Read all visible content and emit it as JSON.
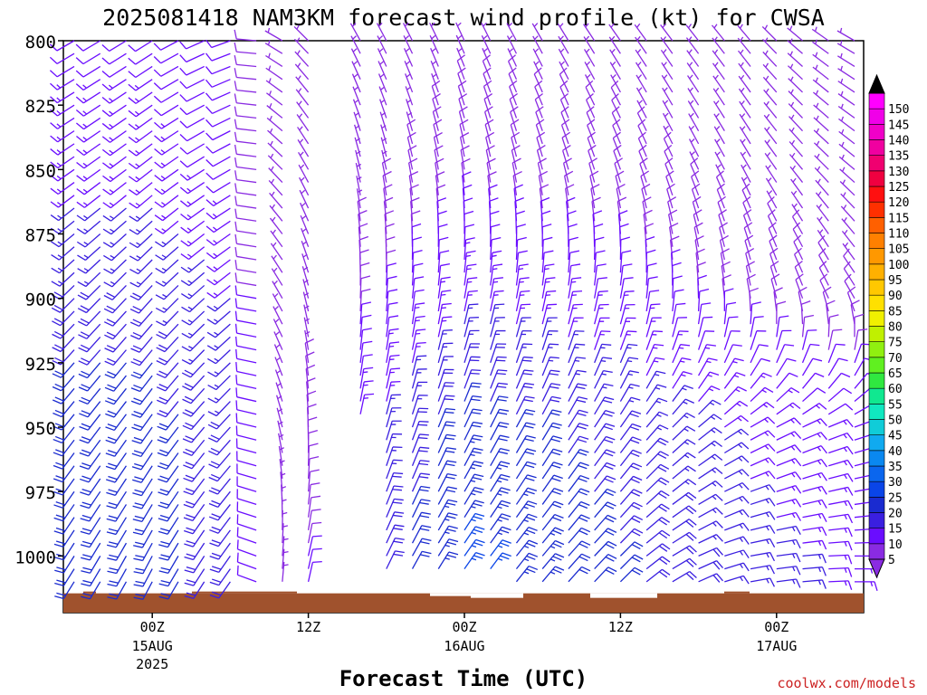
{
  "chart_data": {
    "type": "wind-barb-time-height",
    "title": "2025081418 NAM3KM forecast wind profile (kt) for CWSA",
    "xlabel": "Forecast Time (UTC)",
    "credit": "coolwx.com/models",
    "y_axis": {
      "ticks": [
        "800",
        "825",
        "850",
        "875",
        "900",
        "925",
        "950",
        "975",
        "1000"
      ],
      "range_hpa": [
        800,
        1022
      ],
      "direction": "inverted"
    },
    "x_axis": {
      "ticks": [
        {
          "label": "00Z",
          "sub1": "15AUG",
          "sub2": "2025"
        },
        {
          "label": "12Z",
          "sub1": "",
          "sub2": ""
        },
        {
          "label": "00Z",
          "sub1": "16AUG",
          "sub2": ""
        },
        {
          "label": "12Z",
          "sub1": "",
          "sub2": ""
        },
        {
          "label": "00Z",
          "sub1": "17AUG",
          "sub2": ""
        }
      ],
      "forecast_hours_range": [
        0,
        60
      ],
      "tick_forecast_hours": [
        6,
        18,
        30,
        42,
        54
      ]
    },
    "colorbar": {
      "labels": [
        "5",
        "10",
        "15",
        "20",
        "25",
        "30",
        "35",
        "40",
        "45",
        "50",
        "55",
        "60",
        "65",
        "70",
        "75",
        "80",
        "85",
        "90",
        "95",
        "100",
        "105",
        "110",
        "115",
        "120",
        "125",
        "130",
        "135",
        "140",
        "145",
        "150"
      ],
      "colors": [
        "#8a2be2",
        "#6a0dff",
        "#3a1fe0",
        "#1a2bd0",
        "#0a45e8",
        "#0a66ee",
        "#0a88f0",
        "#10aaf0",
        "#10ccd8",
        "#10e8c0",
        "#10e890",
        "#30e840",
        "#60f020",
        "#90f010",
        "#c0f000",
        "#f0f000",
        "#ffe000",
        "#ffc800",
        "#ffb000",
        "#ff9800",
        "#ff8000",
        "#ff6000",
        "#ff3000",
        "#ff1010",
        "#f00040",
        "#f00070",
        "#f000a0",
        "#f000c8",
        "#f000e8",
        "#ff00ff"
      ]
    },
    "terrain_color": "#a0522d",
    "barb_grid": {
      "levels_hpa": [
        800,
        805,
        810,
        815,
        820,
        825,
        830,
        835,
        840,
        845,
        850,
        855,
        860,
        865,
        870,
        875,
        880,
        885,
        890,
        895,
        900,
        905,
        910,
        915,
        920,
        925,
        930,
        935,
        940,
        945,
        950,
        955,
        960,
        965,
        970,
        975,
        980,
        985,
        990,
        995,
        1000,
        1005,
        1010
      ],
      "forecast_hours": [
        0,
        2,
        4,
        6,
        8,
        10,
        12,
        14,
        16,
        18,
        20,
        22,
        24,
        26,
        28,
        30,
        32,
        34,
        36,
        38,
        40,
        42,
        44,
        46,
        48,
        50,
        52,
        54,
        56,
        58,
        60
      ],
      "keyframes": [
        {
          "fh": 0,
          "dir": [
            240,
            235,
            225,
            218,
            212
          ],
          "spd": [
            12,
            14,
            18,
            22,
            22
          ]
        },
        {
          "fh": 6,
          "dir": [
            238,
            232,
            222,
            215,
            208
          ],
          "spd": [
            12,
            14,
            18,
            22,
            22
          ]
        },
        {
          "fh": 12,
          "dir": [
            250,
            240,
            230,
            222,
            215
          ],
          "spd": [
            10,
            12,
            15,
            18,
            18
          ]
        },
        {
          "fh": 16,
          "dir": [
            300,
            315,
            330,
            345,
            5
          ],
          "spd": [
            6,
            6,
            5,
            5,
            5
          ]
        },
        {
          "fh": 20,
          "dir": [
            330,
            345,
            0,
            10,
            20
          ],
          "spd": [
            6,
            6,
            8,
            12,
            15
          ]
        },
        {
          "fh": 30,
          "dir": [
            335,
            350,
            10,
            25,
            35
          ],
          "spd": [
            7,
            9,
            14,
            22,
            26
          ]
        },
        {
          "fh": 42,
          "dir": [
            325,
            340,
            10,
            35,
            45
          ],
          "spd": [
            7,
            8,
            12,
            18,
            20
          ]
        },
        {
          "fh": 52,
          "dir": [
            320,
            330,
            350,
            60,
            80
          ],
          "spd": [
            6,
            7,
            9,
            14,
            16
          ]
        },
        {
          "fh": 60,
          "dir": [
            300,
            310,
            330,
            70,
            90
          ],
          "spd": [
            5,
            6,
            8,
            12,
            14
          ]
        }
      ],
      "keyframe_levels_hpa": [
        800,
        850,
        900,
        950,
        1000
      ],
      "surface_hpa_by_fh": [
        {
          "fh": 0,
          "p": 1010
        },
        {
          "fh": 18,
          "p": 1010
        },
        {
          "fh": 20,
          "p": 1006
        },
        {
          "fh": 28,
          "p": 1006
        },
        {
          "fh": 34,
          "p": 1010
        },
        {
          "fh": 60,
          "p": 1010
        }
      ],
      "gaps": [
        {
          "fh_from": 19,
          "fh_to": 22,
          "p_min": 950
        },
        {
          "fh_from": 20,
          "fh_to": 21,
          "p_min": 800
        }
      ]
    }
  }
}
